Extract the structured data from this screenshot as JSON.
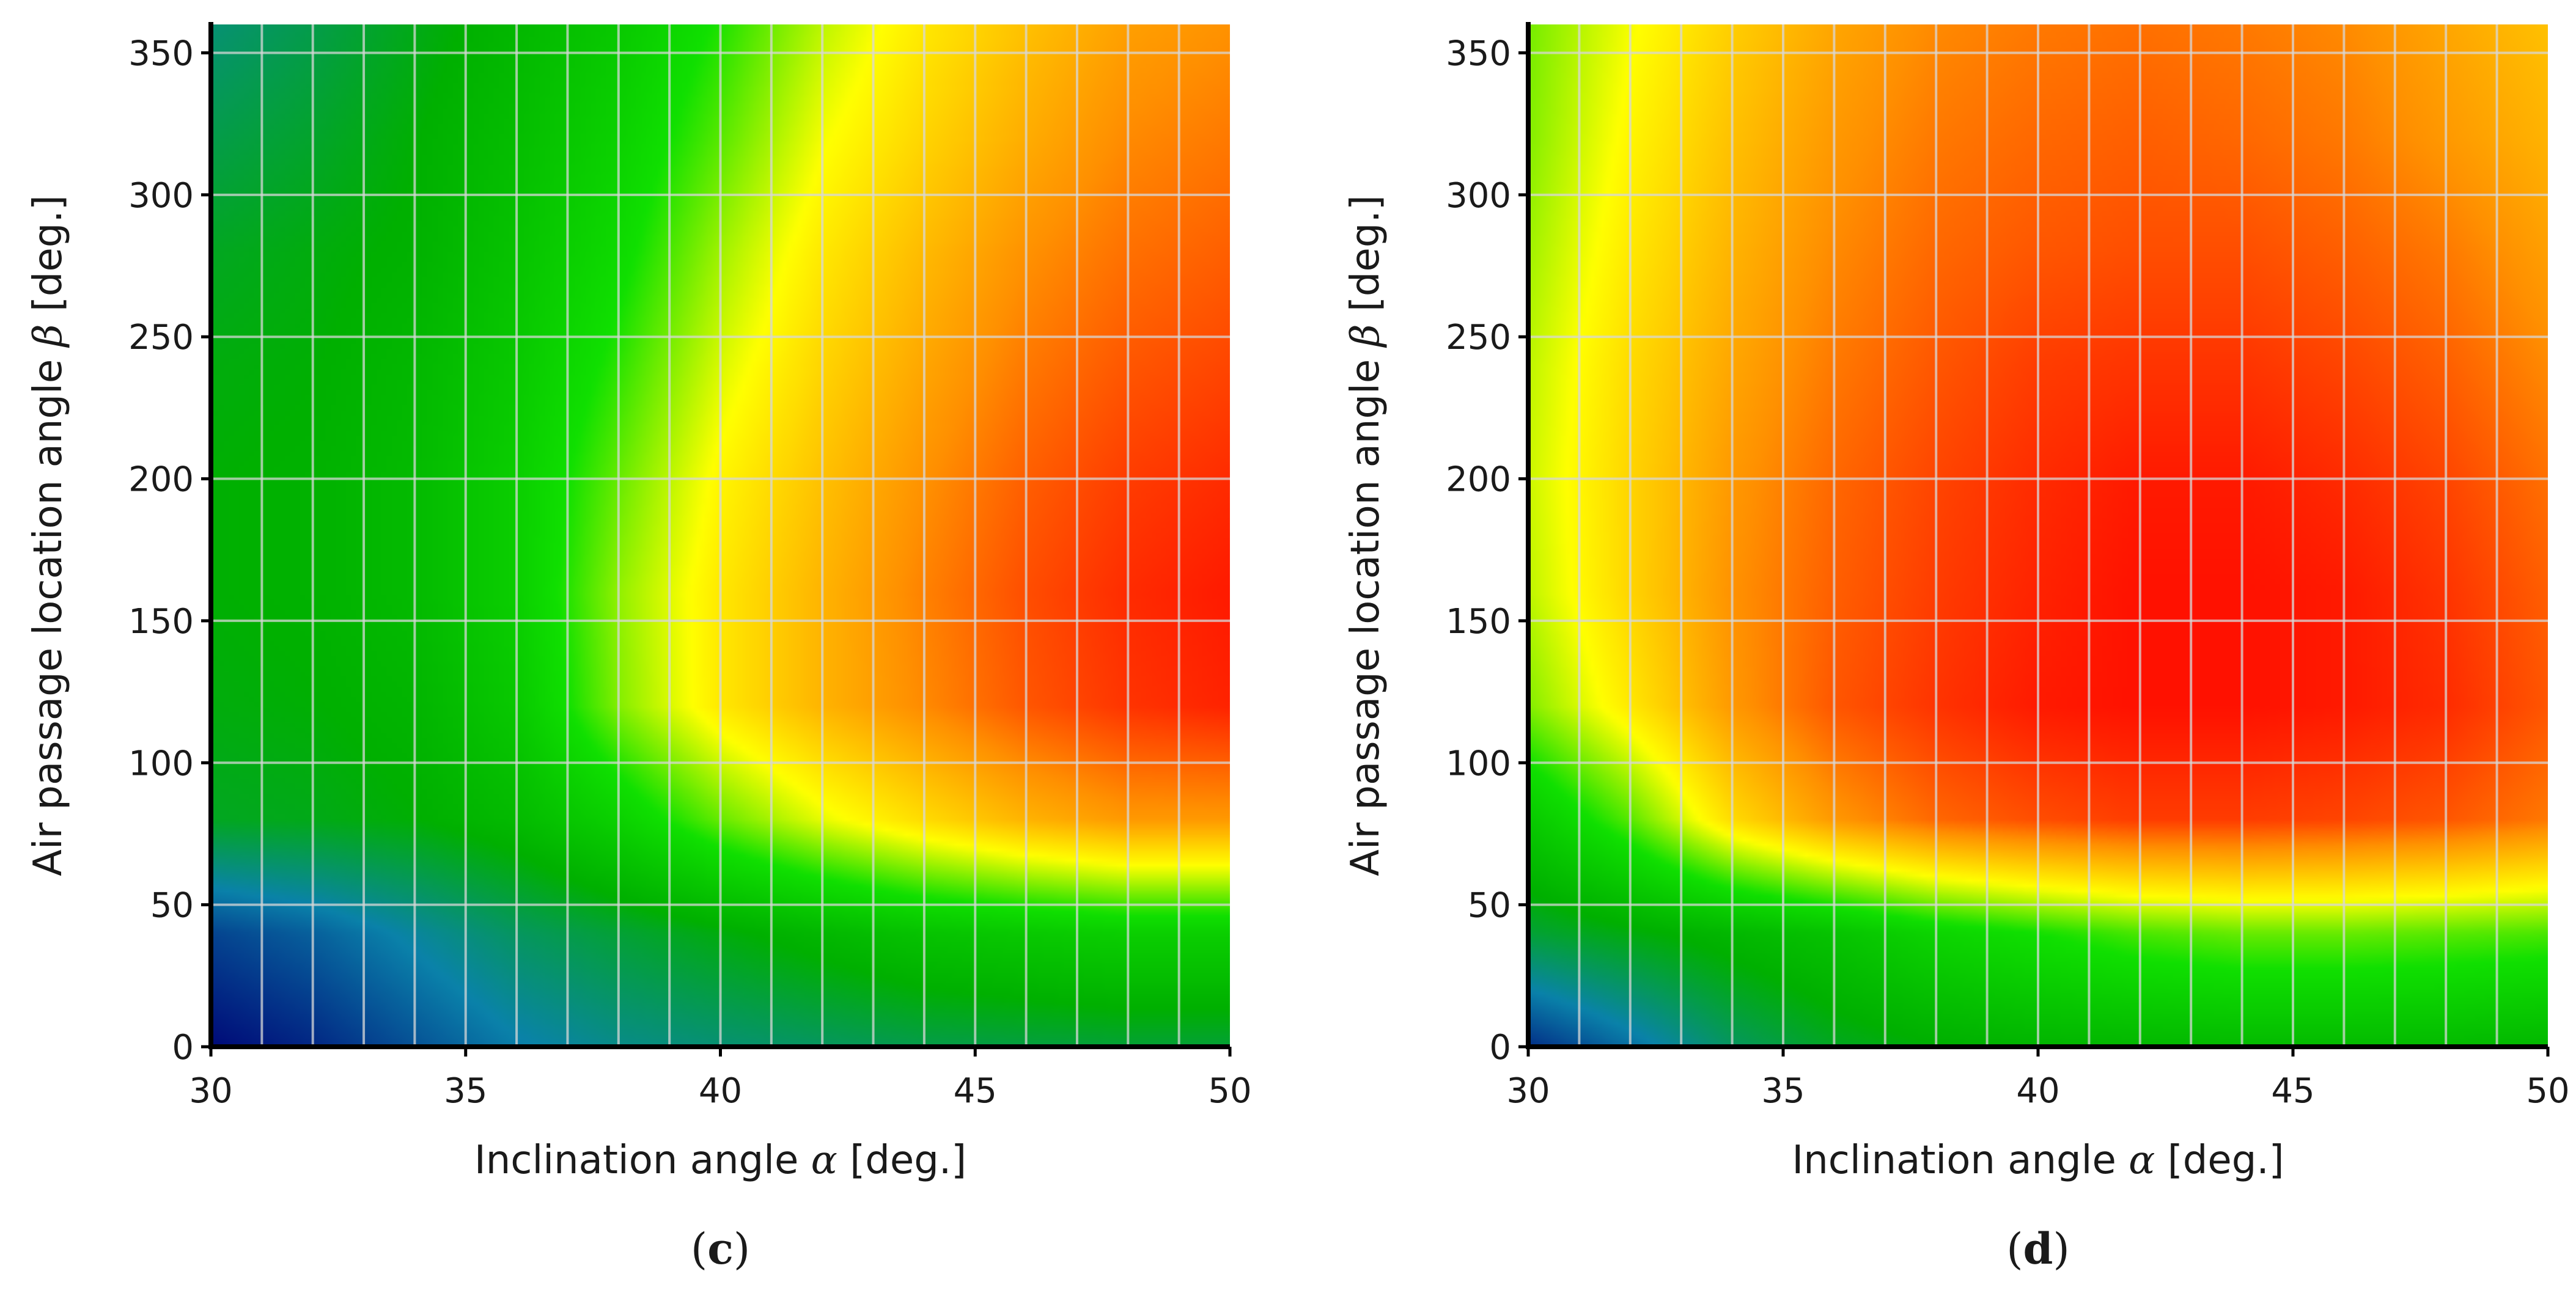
{
  "chart_data": [
    {
      "type": "heatmap",
      "panel_label": "c",
      "xlabel": "Inclination angle α [deg.]",
      "xlabel_text": "Inclination angle ",
      "xlabel_symbol": "α",
      "xlabel_unit": " [deg.]",
      "ylabel": "Air passage location angle β [deg.]",
      "ylabel_text": "Air passage location angle ",
      "ylabel_symbol": "β",
      "ylabel_unit": " [deg.]",
      "xlim": [
        30,
        50
      ],
      "ylim": [
        0,
        360
      ],
      "x_ticks": [
        30,
        35,
        40,
        45,
        50
      ],
      "y_ticks": [
        0,
        50,
        100,
        150,
        200,
        250,
        300,
        350
      ],
      "grid": true,
      "grid_x": [
        31,
        32,
        33,
        34,
        35,
        36,
        37,
        38,
        39,
        40,
        41,
        42,
        43,
        44,
        45,
        46,
        47,
        48,
        49
      ],
      "grid_y": [
        50,
        100,
        150,
        200,
        250,
        300,
        350
      ],
      "colorscale": [
        "#000a78",
        "#0a82aa",
        "#00b000",
        "#10e000",
        "#ffff00",
        "#ff9000",
        "#ff0000"
      ],
      "value_range": [
        0,
        1
      ],
      "field_x": [
        30,
        32,
        34,
        36,
        38,
        40,
        42,
        44,
        46,
        48,
        50
      ],
      "field_y": [
        0,
        40,
        80,
        120,
        160,
        200,
        240,
        280,
        320,
        360
      ],
      "values": [
        [
          0.0,
          0.04,
          0.1,
          0.16,
          0.2,
          0.22,
          0.24,
          0.26,
          0.27,
          0.28,
          0.28
        ],
        [
          0.08,
          0.12,
          0.18,
          0.24,
          0.28,
          0.32,
          0.36,
          0.4,
          0.42,
          0.44,
          0.44
        ],
        [
          0.3,
          0.31,
          0.33,
          0.37,
          0.45,
          0.56,
          0.65,
          0.72,
          0.78,
          0.82,
          0.82
        ],
        [
          0.32,
          0.33,
          0.35,
          0.42,
          0.58,
          0.7,
          0.78,
          0.84,
          0.9,
          0.94,
          0.96
        ],
        [
          0.33,
          0.34,
          0.37,
          0.44,
          0.59,
          0.7,
          0.78,
          0.85,
          0.91,
          0.95,
          0.97
        ],
        [
          0.33,
          0.34,
          0.37,
          0.44,
          0.56,
          0.68,
          0.76,
          0.83,
          0.89,
          0.93,
          0.95
        ],
        [
          0.32,
          0.33,
          0.36,
          0.42,
          0.52,
          0.64,
          0.73,
          0.8,
          0.86,
          0.9,
          0.92
        ],
        [
          0.3,
          0.32,
          0.34,
          0.4,
          0.48,
          0.6,
          0.7,
          0.77,
          0.83,
          0.87,
          0.89
        ],
        [
          0.26,
          0.29,
          0.33,
          0.38,
          0.45,
          0.55,
          0.66,
          0.73,
          0.79,
          0.84,
          0.86
        ],
        [
          0.22,
          0.26,
          0.31,
          0.36,
          0.42,
          0.51,
          0.62,
          0.7,
          0.76,
          0.81,
          0.83
        ]
      ]
    },
    {
      "type": "heatmap",
      "panel_label": "d",
      "xlabel": "Inclination angle α [deg.]",
      "xlabel_text": "Inclination angle ",
      "xlabel_symbol": "α",
      "xlabel_unit": " [deg.]",
      "ylabel": "Air passage location angle β [deg.]",
      "ylabel_text": "Air passage location angle ",
      "ylabel_symbol": "β",
      "ylabel_unit": " [deg.]",
      "xlim": [
        30,
        50
      ],
      "ylim": [
        0,
        360
      ],
      "x_ticks": [
        30,
        35,
        40,
        45,
        50
      ],
      "y_ticks": [
        0,
        50,
        100,
        150,
        200,
        250,
        300,
        350
      ],
      "grid": true,
      "grid_x": [
        31,
        32,
        33,
        34,
        35,
        36,
        37,
        38,
        39,
        40,
        41,
        42,
        43,
        44,
        45,
        46,
        47,
        48,
        49
      ],
      "grid_y": [
        50,
        100,
        150,
        200,
        250,
        300,
        350
      ],
      "colorscale": [
        "#000a78",
        "#0a82aa",
        "#00b000",
        "#10e000",
        "#ffff00",
        "#ff9000",
        "#ff0000"
      ],
      "value_range": [
        0,
        1
      ],
      "field_x": [
        30,
        32,
        34,
        36,
        38,
        40,
        42,
        44,
        46,
        48,
        50
      ],
      "field_y": [
        0,
        40,
        80,
        120,
        160,
        200,
        240,
        280,
        320,
        360
      ],
      "values": [
        [
          0.05,
          0.14,
          0.24,
          0.3,
          0.33,
          0.35,
          0.36,
          0.37,
          0.37,
          0.37,
          0.36
        ],
        [
          0.28,
          0.32,
          0.36,
          0.4,
          0.46,
          0.5,
          0.54,
          0.56,
          0.56,
          0.55,
          0.54
        ],
        [
          0.42,
          0.55,
          0.72,
          0.82,
          0.88,
          0.91,
          0.93,
          0.93,
          0.92,
          0.9,
          0.86
        ],
        [
          0.58,
          0.7,
          0.82,
          0.9,
          0.94,
          0.97,
          0.98,
          0.98,
          0.97,
          0.95,
          0.9
        ],
        [
          0.62,
          0.73,
          0.83,
          0.89,
          0.93,
          0.96,
          0.98,
          0.98,
          0.97,
          0.94,
          0.89
        ],
        [
          0.63,
          0.73,
          0.82,
          0.88,
          0.92,
          0.95,
          0.97,
          0.97,
          0.95,
          0.92,
          0.87
        ],
        [
          0.62,
          0.72,
          0.8,
          0.86,
          0.9,
          0.93,
          0.94,
          0.94,
          0.92,
          0.89,
          0.84
        ],
        [
          0.6,
          0.7,
          0.78,
          0.84,
          0.88,
          0.9,
          0.91,
          0.91,
          0.89,
          0.86,
          0.81
        ],
        [
          0.58,
          0.68,
          0.76,
          0.82,
          0.86,
          0.88,
          0.89,
          0.88,
          0.86,
          0.82,
          0.78
        ],
        [
          0.57,
          0.66,
          0.74,
          0.8,
          0.84,
          0.86,
          0.87,
          0.86,
          0.84,
          0.8,
          0.76
        ]
      ]
    }
  ]
}
